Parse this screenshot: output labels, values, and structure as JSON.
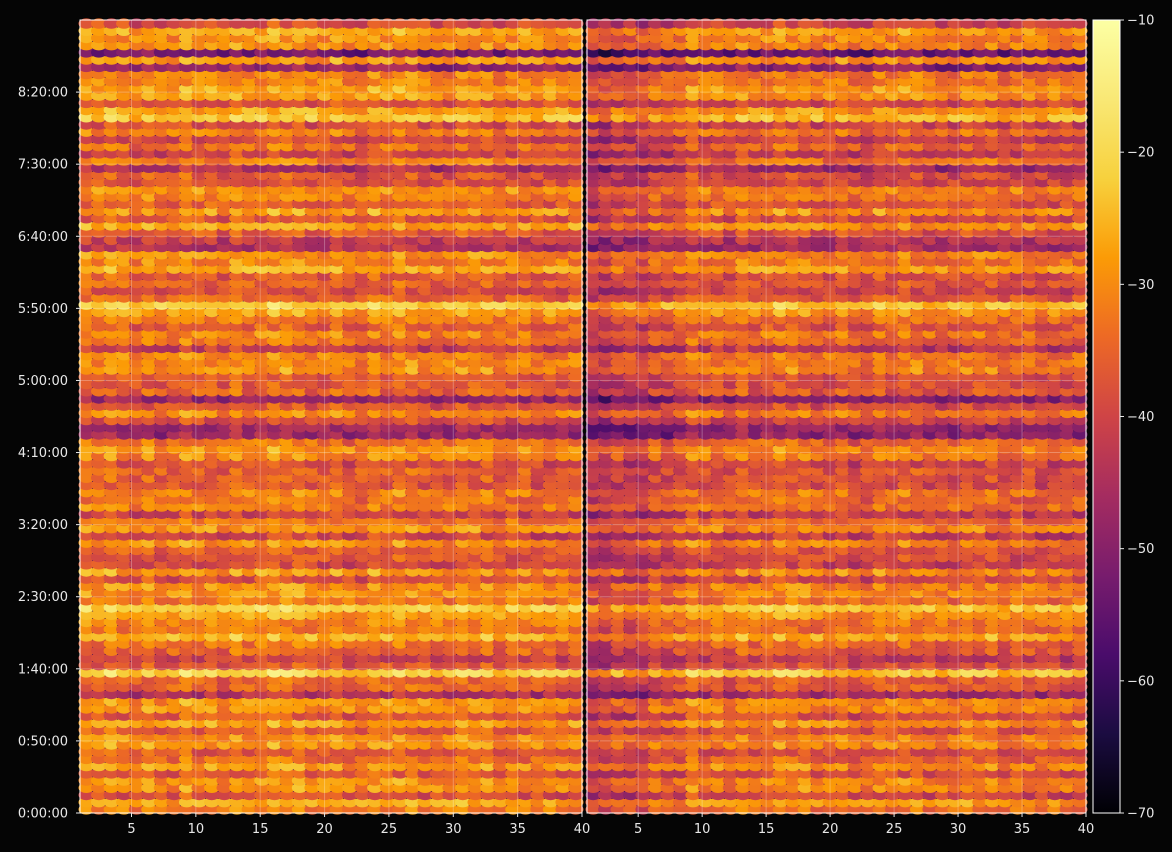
{
  "chart_data": {
    "type": "heatmap",
    "title": "",
    "panels": [
      {
        "name": "",
        "xlim": [
          1,
          40
        ]
      },
      {
        "name": "",
        "xlim": [
          1,
          40
        ]
      }
    ],
    "x_ticks": [
      5,
      10,
      15,
      20,
      25,
      30,
      35,
      40
    ],
    "x_ticks_left_panel": [
      "5",
      "10",
      "15",
      "20",
      "25",
      "30",
      "35",
      "40"
    ],
    "x_ticks_right_panel": [
      "5",
      "10",
      "15",
      "20",
      "25",
      "30",
      "35",
      "40"
    ],
    "y_ticks": [
      "0:00:00",
      "0:50:00",
      "1:40:00",
      "2:30:00",
      "3:20:00",
      "4:10:00",
      "5:00:00",
      "5:50:00",
      "6:40:00",
      "7:30:00",
      "8:20:00"
    ],
    "y_tick_seconds": [
      0,
      3000,
      6000,
      9000,
      12000,
      15000,
      18000,
      21000,
      24000,
      27000,
      30000
    ],
    "ylim_seconds": [
      0,
      33000
    ],
    "grid": true,
    "colorbar": {
      "colormap": "inferno",
      "range": [
        -70,
        -10
      ],
      "ticks": [
        "−10",
        "−20",
        "−30",
        "−40",
        "−50",
        "−60",
        "−70"
      ],
      "tick_values": [
        -10,
        -20,
        -30,
        -40,
        -50,
        -60,
        -70
      ]
    },
    "colors": {
      "background": "#050505",
      "grid": "#ffffff",
      "text": "#e8e8e8"
    },
    "value_summary": {
      "left_panel_typical": [
        -40,
        -25
      ],
      "right_panel_typical": [
        -55,
        -25
      ],
      "right_panel_note_low_columns": [
        1,
        8
      ]
    }
  }
}
